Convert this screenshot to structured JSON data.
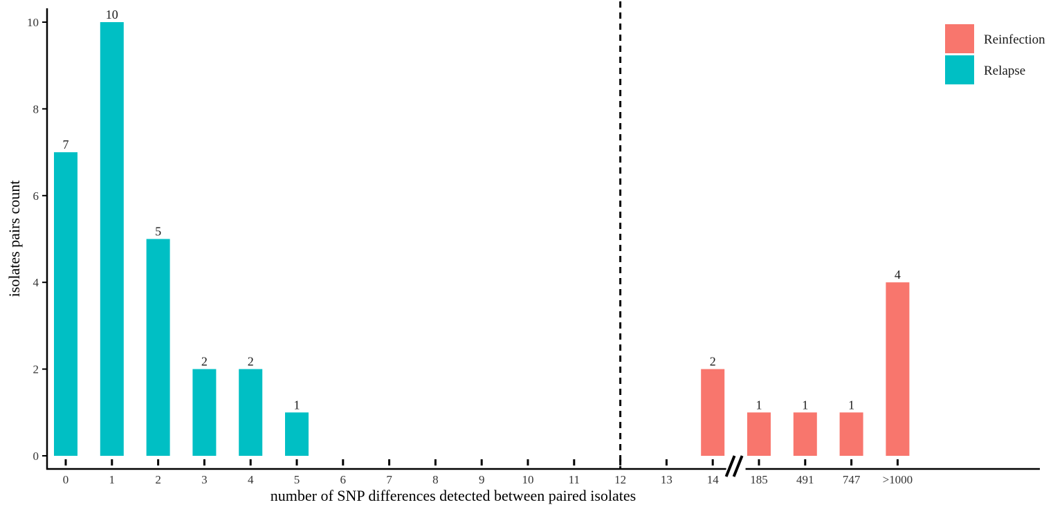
{
  "chart_data": {
    "type": "bar",
    "title": "",
    "xlabel": "number of SNP differences detected between paired isolates",
    "ylabel": "isolates pairs count",
    "ylim": [
      0,
      10
    ],
    "yticks": [
      0,
      2,
      4,
      6,
      8,
      10
    ],
    "categories": [
      "0",
      "1",
      "2",
      "3",
      "4",
      "5",
      "6",
      "7",
      "8",
      "9",
      "10",
      "11",
      "12",
      "13",
      "14",
      "185",
      "491",
      "747",
      ">1000"
    ],
    "series": [
      {
        "name": "Relapse",
        "color": "#00BFC4",
        "values": [
          7,
          10,
          5,
          2,
          2,
          1,
          null,
          null,
          null,
          null,
          null,
          null,
          null,
          null,
          null,
          null,
          null,
          null,
          null
        ]
      },
      {
        "name": "Reinfection",
        "color": "#F8766D",
        "values": [
          null,
          null,
          null,
          null,
          null,
          null,
          null,
          null,
          null,
          null,
          null,
          null,
          null,
          null,
          2,
          1,
          1,
          1,
          4
        ]
      }
    ],
    "legend": {
      "position": "top-right",
      "order": [
        "Reinfection",
        "Relapse"
      ]
    },
    "reference_line": {
      "x": "12",
      "style": "dashed"
    },
    "axis_break": {
      "between": [
        "14",
        "185"
      ]
    },
    "grid": false
  }
}
